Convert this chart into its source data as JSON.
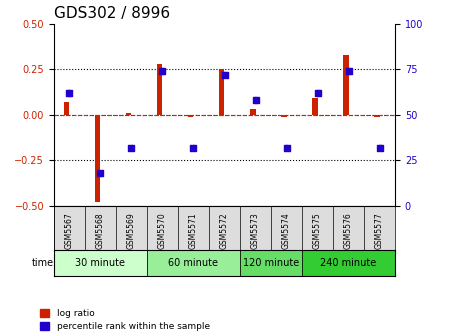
{
  "title": "GDS302 / 8996",
  "samples": [
    "GSM5567",
    "GSM5568",
    "GSM5569",
    "GSM5570",
    "GSM5571",
    "GSM5572",
    "GSM5573",
    "GSM5574",
    "GSM5575",
    "GSM5576",
    "GSM5577"
  ],
  "log_ratio": [
    0.07,
    -0.48,
    0.01,
    0.28,
    -0.01,
    0.25,
    0.03,
    -0.01,
    0.09,
    0.33,
    -0.01
  ],
  "percentile": [
    62,
    18,
    32,
    74,
    32,
    72,
    58,
    32,
    62,
    74,
    32
  ],
  "ylim_left": [
    -0.5,
    0.5
  ],
  "ylim_right": [
    0,
    100
  ],
  "yticks_left": [
    -0.5,
    -0.25,
    0.0,
    0.25,
    0.5
  ],
  "yticks_right": [
    0,
    25,
    50,
    75,
    100
  ],
  "hline_dotted": [
    0.25,
    0.0,
    -0.25
  ],
  "bar_color": "#cc2200",
  "dot_color": "#2200cc",
  "bg_color": "#ffffff",
  "groups": [
    {
      "label": "30 minute",
      "samples": [
        "GSM5567",
        "GSM5568",
        "GSM5569"
      ],
      "color": "#ccffcc"
    },
    {
      "label": "60 minute",
      "samples": [
        "GSM5570",
        "GSM5571",
        "GSM5572"
      ],
      "color": "#99ee99"
    },
    {
      "label": "120 minute",
      "samples": [
        "GSM5573",
        "GSM5574"
      ],
      "color": "#66dd66"
    },
    {
      "label": "240 minute",
      "samples": [
        "GSM5575",
        "GSM5576",
        "GSM5577"
      ],
      "color": "#33cc33"
    }
  ],
  "legend_bar_label": "log ratio",
  "legend_dot_label": "percentile rank within the sample",
  "xlabel_time": "time",
  "title_fontsize": 11,
  "tick_fontsize": 7,
  "label_fontsize": 8
}
